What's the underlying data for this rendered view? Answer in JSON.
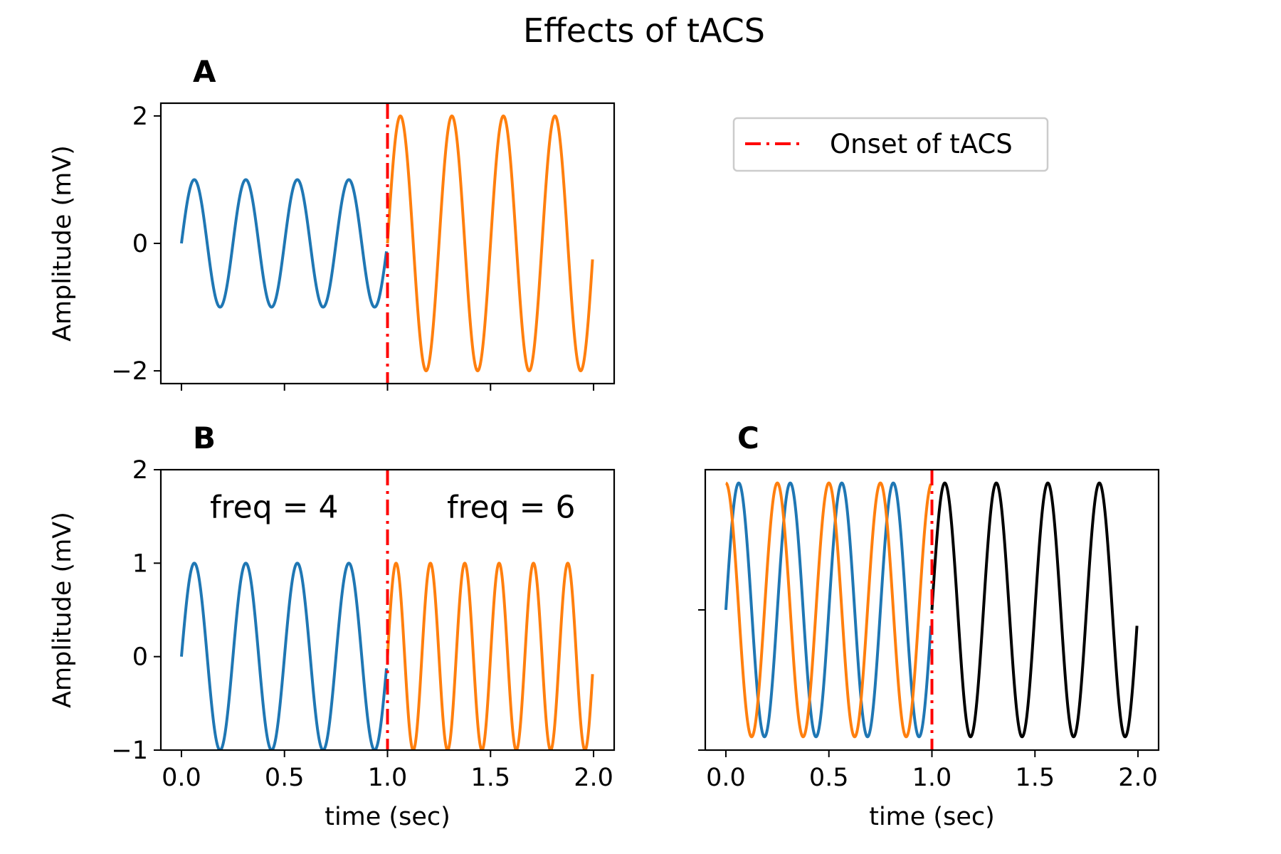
{
  "figure": {
    "title": "Effects of tACS"
  },
  "colors": {
    "blue": "#1f77b4",
    "orange": "#ff7f0e",
    "black": "#000000",
    "onset": "#ff0000"
  },
  "legend": {
    "label": "Onset of tACS",
    "placement": "upper-right"
  },
  "chart_data": [
    {
      "id": "A",
      "label": "A",
      "type": "line",
      "xlabel": "",
      "ylabel": "Amplitude (mV)",
      "xlim": [
        -0.1,
        2.1
      ],
      "ylim": [
        -2.2,
        2.2
      ],
      "xticks": [
        0.0,
        0.5,
        1.0,
        1.5,
        2.0
      ],
      "xtick_labels": [
        "",
        "",
        "",
        "",
        ""
      ],
      "yticks": [
        -2,
        0,
        2
      ],
      "ytick_labels": [
        "−2",
        "0",
        "2"
      ],
      "onset_x": 1.0,
      "series": [
        {
          "color": "blue",
          "x_start": 0.0,
          "x_end": 1.0,
          "amplitude": 1,
          "frequency": 4,
          "phase": 0
        },
        {
          "color": "orange",
          "x_start": 1.0,
          "x_end": 2.0,
          "amplitude": 2,
          "frequency": 4,
          "phase": 0
        }
      ],
      "annotations": []
    },
    {
      "id": "B",
      "label": "B",
      "type": "line",
      "xlabel": "time (sec)",
      "ylabel": "Amplitude (mV)",
      "xlim": [
        -0.1,
        2.1
      ],
      "ylim": [
        -1,
        2
      ],
      "xticks": [
        0.0,
        0.5,
        1.0,
        1.5,
        2.0
      ],
      "xtick_labels": [
        "0.0",
        "0.5",
        "1.0",
        "1.5",
        "2.0"
      ],
      "yticks": [
        -1,
        0,
        1,
        2
      ],
      "ytick_labels": [
        "−1",
        "0",
        "1",
        "2"
      ],
      "onset_x": 1.0,
      "series": [
        {
          "color": "blue",
          "x_start": 0.0,
          "x_end": 1.0,
          "amplitude": 1,
          "frequency": 4,
          "phase": 0
        },
        {
          "color": "orange",
          "x_start": 1.0,
          "x_end": 2.0,
          "amplitude": 1,
          "frequency": 6,
          "phase": 0
        }
      ],
      "annotations": [
        {
          "text": "freq = 4",
          "x": 0.45,
          "y": 1.6
        },
        {
          "text": "freq = 6",
          "x": 1.6,
          "y": 1.6
        }
      ]
    },
    {
      "id": "C",
      "label": "C",
      "type": "line",
      "xlabel": "time (sec)",
      "ylabel": "",
      "xlim": [
        -0.1,
        2.1
      ],
      "ylim": [
        -0.95,
        0.95
      ],
      "xticks": [
        0.0,
        0.5,
        1.0,
        1.5,
        2.0
      ],
      "xtick_labels": [
        "0.0",
        "0.5",
        "1.0",
        "1.5",
        "2.0"
      ],
      "yticks": [
        0,
        -0.95
      ],
      "ytick_labels": [
        "",
        ""
      ],
      "onset_x": 1.0,
      "series": [
        {
          "color": "blue",
          "x_start": 0.0,
          "x_end": 1.0,
          "amplitude": 0.86,
          "frequency": 4,
          "phase": 0
        },
        {
          "color": "orange",
          "x_start": 0.0,
          "x_end": 1.0,
          "amplitude": 0.86,
          "frequency": 4,
          "phase": 1.5708
        },
        {
          "color": "black",
          "x_start": 1.0,
          "x_end": 2.0,
          "amplitude": 0.86,
          "frequency": 4,
          "phase": 0
        }
      ],
      "annotations": []
    }
  ]
}
